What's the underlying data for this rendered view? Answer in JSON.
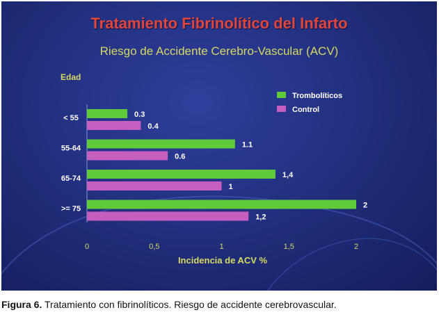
{
  "slide": {
    "title": "Tratamiento Fibrinolítico del Infarto",
    "subtitle": "Riesgo de Accidente Cerebro-Vascular (ACV)"
  },
  "chart_data": {
    "type": "bar",
    "orientation": "horizontal",
    "category_axis_title": "Edad",
    "categories": [
      "< 55",
      "55-64",
      "65-74",
      ">= 75"
    ],
    "series": [
      {
        "name": "Trombolíticos",
        "color": "#5fcb3b",
        "values": [
          0.3,
          1.1,
          1.4,
          2
        ],
        "labels": [
          "0.3",
          "1.1",
          "1,4",
          "2"
        ]
      },
      {
        "name": "Control",
        "color": "#c45fc0",
        "values": [
          0.4,
          0.6,
          1,
          1.2
        ],
        "labels": [
          "0.4",
          "0.6",
          "1",
          "1,2"
        ]
      }
    ],
    "xlabel": "Incidencia de ACV %",
    "xlim": [
      0,
      2
    ],
    "xticks": [
      0,
      0.5,
      1,
      1.5,
      2
    ],
    "xtick_labels": [
      "0",
      "0,5",
      "1",
      "1,5",
      "2"
    ],
    "grid": false,
    "legend_position": "top-right"
  },
  "caption": {
    "label": "Figura 6.",
    "text": " Tratamiento con fibrinolíticos. Riesgo de accidente cerebrovascular."
  }
}
